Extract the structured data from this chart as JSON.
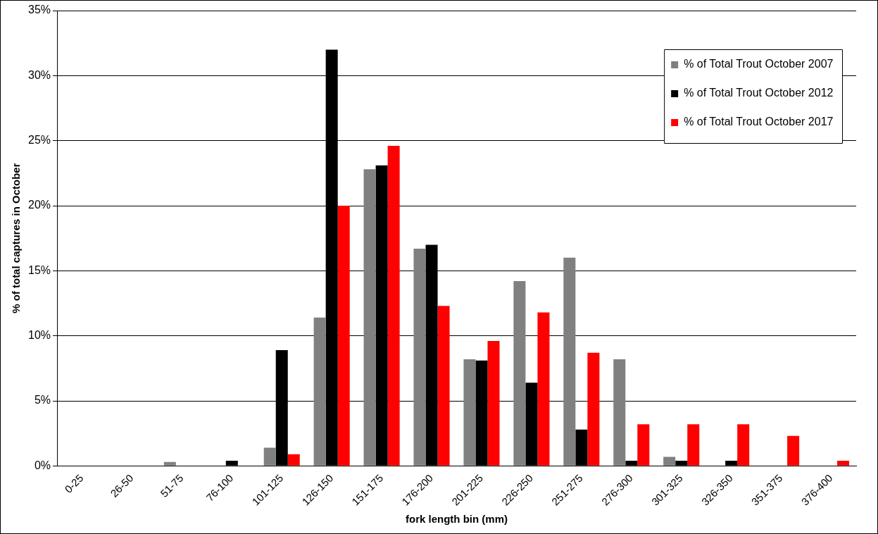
{
  "chart_data": {
    "type": "bar",
    "xlabel": "fork length bin (mm)",
    "ylabel": "% of total captures in October",
    "categories": [
      "0-25",
      "26-50",
      "51-75",
      "76-100",
      "101-125",
      "126-150",
      "151-175",
      "176-200",
      "201-225",
      "226-250",
      "251-275",
      "276-300",
      "301-325",
      "326-350",
      "351-375",
      "376-400"
    ],
    "series": [
      {
        "name": "% of Total Trout October 2007",
        "color": "#808080",
        "values": [
          0,
          0,
          0.3,
          0,
          1.4,
          11.4,
          22.8,
          16.7,
          8.2,
          14.2,
          16.0,
          8.2,
          0.7,
          0,
          0,
          0
        ]
      },
      {
        "name": "% of Total Trout October 2012",
        "color": "#000000",
        "values": [
          0,
          0,
          0,
          0.4,
          8.9,
          32.0,
          23.1,
          17.0,
          8.1,
          6.4,
          2.8,
          0.4,
          0.4,
          0.4,
          0,
          0
        ]
      },
      {
        "name": "% of Total Trout October 2017",
        "color": "#ff0000",
        "values": [
          0,
          0,
          0,
          0,
          0.9,
          20.0,
          24.6,
          12.3,
          9.6,
          11.8,
          8.7,
          3.2,
          3.2,
          3.2,
          2.3,
          0.4
        ]
      }
    ],
    "ylim": [
      0,
      35
    ],
    "yticks": [
      {
        "value": 0,
        "label": "0%"
      },
      {
        "value": 5,
        "label": "5%"
      },
      {
        "value": 10,
        "label": "10%"
      },
      {
        "value": 15,
        "label": "15%"
      },
      {
        "value": 20,
        "label": "20%"
      },
      {
        "value": 25,
        "label": "25%"
      },
      {
        "value": 30,
        "label": "30%"
      },
      {
        "value": 35,
        "label": "35%"
      }
    ],
    "grid": "y",
    "legend": "top right"
  }
}
